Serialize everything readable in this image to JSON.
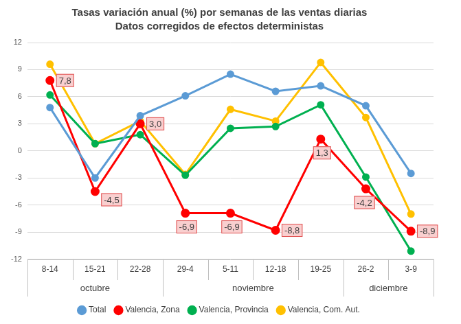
{
  "chart_data": {
    "type": "line",
    "title": "Tasas variación anual (%) por semanas de las ventas diarias",
    "subtitle": "Datos corregidos de efectos deterministas",
    "categories": [
      "8-14",
      "15-21",
      "22-28",
      "29-4",
      "5-11",
      "12-18",
      "19-25",
      "26-2",
      "3-9"
    ],
    "groups": [
      "octubre",
      "octubre",
      "octubre",
      "noviembre",
      "noviembre",
      "noviembre",
      "noviembre",
      "diciembre",
      "diciembre"
    ],
    "series": [
      {
        "name": "Total",
        "color": "#5b9bd5",
        "values": [
          4.8,
          -3.0,
          3.9,
          6.1,
          8.5,
          6.6,
          7.2,
          5.0,
          -2.5
        ]
      },
      {
        "name": "Valencia, Zona",
        "color": "#ff0000",
        "values": [
          7.8,
          -4.5,
          3.0,
          -6.9,
          -6.9,
          -8.8,
          1.3,
          -4.2,
          -8.9
        ],
        "data_labels": true,
        "value_labels": [
          "7,8",
          "-4,5",
          "3,0",
          "-6,9",
          "-6,9",
          "-8,8",
          "1,3",
          "-4,2",
          "-8,9"
        ]
      },
      {
        "name": "Valencia, Provincia",
        "color": "#00b050",
        "values": [
          6.2,
          0.8,
          1.8,
          -2.7,
          2.5,
          2.7,
          5.1,
          -2.9,
          -11.1
        ]
      },
      {
        "name": "Valencia, Com. Aut.",
        "color": "#ffc000",
        "values": [
          9.6,
          0.8,
          3.3,
          -2.6,
          4.6,
          3.3,
          9.8,
          3.7,
          -7.0
        ]
      }
    ],
    "ylim": [
      -12,
      12
    ],
    "yticks": [
      -12,
      -9,
      -6,
      -3,
      0,
      3,
      6,
      9,
      12
    ],
    "grid": true,
    "legend": "bottom",
    "marker": "circle"
  }
}
